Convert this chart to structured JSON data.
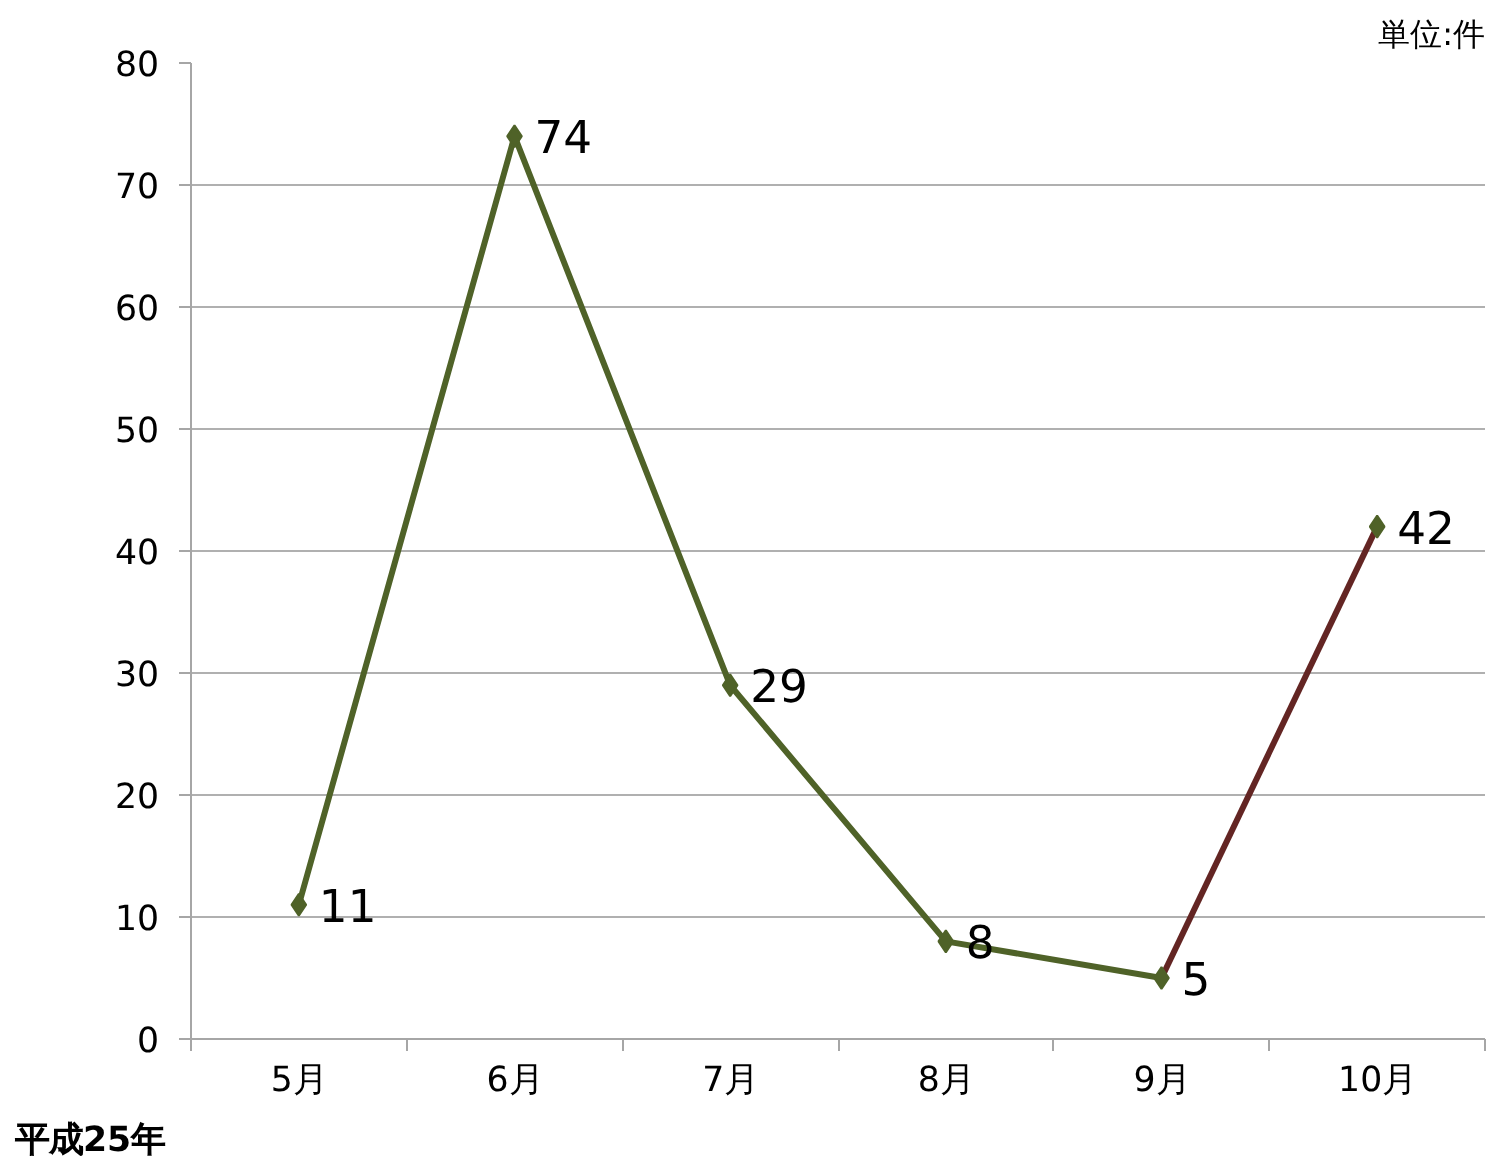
{
  "chart_data": {
    "type": "line",
    "categories": [
      "5月",
      "6月",
      "7月",
      "8月",
      "9月",
      "10月"
    ],
    "series": [
      {
        "type": "line",
        "color": "#4f6228",
        "values": [
          11,
          74,
          29,
          8,
          5,
          null
        ]
      },
      {
        "type": "line",
        "color": "#632523",
        "values": [
          null,
          null,
          null,
          null,
          5,
          42
        ]
      },
      {
        "type": "scatter",
        "color": "#4f6228",
        "marker": "diamond",
        "values": [
          11,
          74,
          29,
          8,
          5,
          42
        ],
        "value_labels": [
          "11",
          "74",
          "29",
          "8",
          "5",
          "42"
        ]
      }
    ],
    "ylim": [
      0,
      80
    ],
    "yticks": [
      0,
      10,
      20,
      30,
      40,
      50,
      60,
      70,
      80
    ],
    "grid": "y",
    "annotations": [
      "単位:件",
      "平成25年"
    ]
  }
}
